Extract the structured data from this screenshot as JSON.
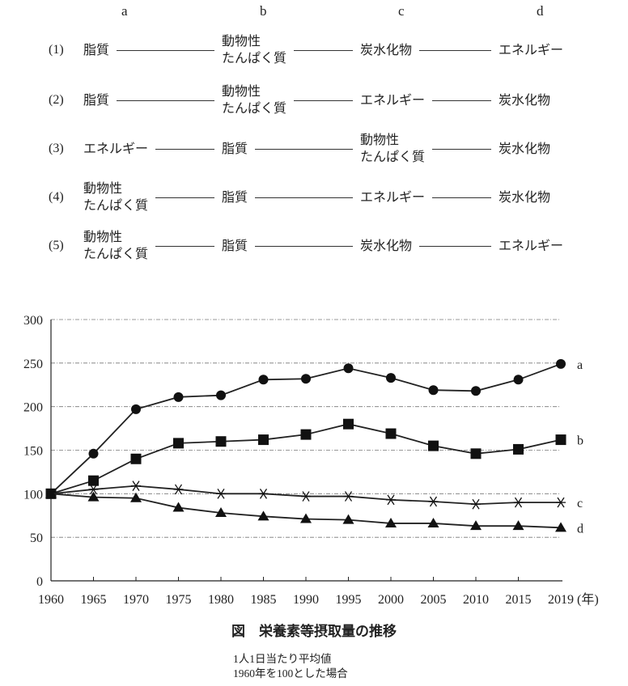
{
  "choices": {
    "headers": [
      "a",
      "b",
      "c",
      "d"
    ],
    "rows": [
      {
        "num": "(1)",
        "cells": [
          "脂質",
          "動物性\nたんぱく質",
          "炭水化物",
          "エネルギー"
        ]
      },
      {
        "num": "(2)",
        "cells": [
          "脂質",
          "動物性\nたんぱく質",
          "エネルギー",
          "炭水化物"
        ]
      },
      {
        "num": "(3)",
        "cells": [
          "エネルギー",
          "脂質",
          "動物性\nたんぱく質",
          "炭水化物"
        ]
      },
      {
        "num": "(4)",
        "cells": [
          "動物性\nたんぱく質",
          "脂質",
          "エネルギー",
          "炭水化物"
        ]
      },
      {
        "num": "(5)",
        "cells": [
          "動物性\nたんぱく質",
          "脂質",
          "炭水化物",
          "エネルギー"
        ]
      }
    ]
  },
  "chart_data": {
    "type": "line",
    "title": "図　栄養素等摂取量の推移",
    "notes": [
      "1人1日当たり平均値",
      "1960年を100とした場合"
    ],
    "xlabel": "(年)",
    "ylabel": "",
    "categories": [
      "1960",
      "1965",
      "1970",
      "1975",
      "1980",
      "1985",
      "1990",
      "1995",
      "2000",
      "2005",
      "2010",
      "2015",
      "2019"
    ],
    "ylim": [
      0,
      300
    ],
    "yticks": [
      "0",
      "50",
      "100",
      "150",
      "200",
      "250",
      "300"
    ],
    "grid": true,
    "legend": "line-end labels",
    "series": [
      {
        "name": "a",
        "marker": "circle",
        "values": [
          100,
          146,
          197,
          211,
          213,
          231,
          232,
          244,
          233,
          219,
          218,
          231,
          249
        ]
      },
      {
        "name": "b",
        "marker": "square",
        "values": [
          100,
          115,
          140,
          158,
          160,
          162,
          168,
          180,
          169,
          155,
          146,
          151,
          162
        ]
      },
      {
        "name": "c",
        "marker": "asterisk",
        "values": [
          100,
          105,
          109,
          105,
          100,
          100,
          97,
          97,
          93,
          91,
          88,
          90,
          90
        ]
      },
      {
        "name": "d",
        "marker": "triangle",
        "values": [
          100,
          96,
          95,
          84,
          78,
          74,
          71,
          70,
          66,
          66,
          63,
          63,
          61
        ]
      }
    ]
  }
}
